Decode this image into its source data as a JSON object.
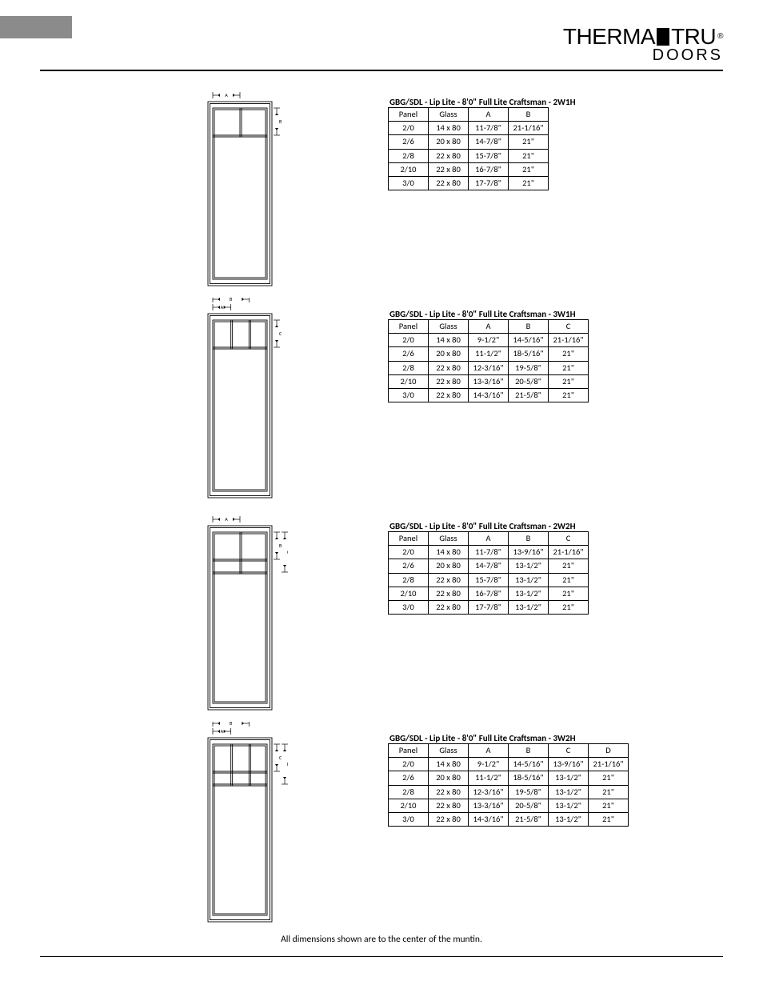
{
  "logo": {
    "part1": "THERMA",
    "part2": "TRU",
    "sub": "DOORS"
  },
  "footnote": "All dimensions shown are to the center of the muntin.",
  "diag_style": {
    "stroke": "#000000",
    "stroke_width": 0.9,
    "fill": "#ffffff",
    "label_font": "6"
  },
  "sections": [
    {
      "id": "s1",
      "title": "GBG/SDL - Lip Lite - 8'0\" Full Lite Craftsman - 2W1H",
      "diagram": {
        "cols": 2,
        "rows": 1,
        "labels": [
          "A",
          "B"
        ]
      },
      "columns": [
        "Panel",
        "Glass",
        "A",
        "B"
      ],
      "rows": [
        [
          "2/0",
          "14 x 80",
          "11-7/8\"",
          "21-1/16\""
        ],
        [
          "2/6",
          "20 x 80",
          "14-7/8\"",
          "21\""
        ],
        [
          "2/8",
          "22 x 80",
          "15-7/8\"",
          "21\""
        ],
        [
          "2/10",
          "22 x 80",
          "16-7/8\"",
          "21\""
        ],
        [
          "3/0",
          "22 x 80",
          "17-7/8\"",
          "21\""
        ]
      ]
    },
    {
      "id": "s2",
      "title": "GBG/SDL - Lip Lite - 8'0\" Full Lite Craftsman - 3W1H",
      "diagram": {
        "cols": 3,
        "rows": 1,
        "labels": [
          "A",
          "B",
          "C"
        ]
      },
      "columns": [
        "Panel",
        "Glass",
        "A",
        "B",
        "C"
      ],
      "rows": [
        [
          "2/0",
          "14 x 80",
          "9-1/2\"",
          "14-5/16\"",
          "21-1/16\""
        ],
        [
          "2/6",
          "20 x 80",
          "11-1/2\"",
          "18-5/16\"",
          "21\""
        ],
        [
          "2/8",
          "22 x 80",
          "12-3/16\"",
          "19-5/8\"",
          "21\""
        ],
        [
          "2/10",
          "22 x 80",
          "13-3/16\"",
          "20-5/8\"",
          "21\""
        ],
        [
          "3/0",
          "22 x 80",
          "14-3/16\"",
          "21-5/8\"",
          "21\""
        ]
      ]
    },
    {
      "id": "s3",
      "title": "GBG/SDL - Lip Lite - 8'0\" Full Lite Craftsman - 2W2H",
      "diagram": {
        "cols": 2,
        "rows": 2,
        "labels": [
          "A",
          "B",
          "C"
        ]
      },
      "columns": [
        "Panel",
        "Glass",
        "A",
        "B",
        "C"
      ],
      "rows": [
        [
          "2/0",
          "14 x 80",
          "11-7/8\"",
          "13-9/16\"",
          "21-1/16\""
        ],
        [
          "2/6",
          "20 x 80",
          "14-7/8\"",
          "13-1/2\"",
          "21\""
        ],
        [
          "2/8",
          "22 x 80",
          "15-7/8\"",
          "13-1/2\"",
          "21\""
        ],
        [
          "2/10",
          "22 x 80",
          "16-7/8\"",
          "13-1/2\"",
          "21\""
        ],
        [
          "3/0",
          "22 x 80",
          "17-7/8\"",
          "13-1/2\"",
          "21\""
        ]
      ]
    },
    {
      "id": "s4",
      "title": "GBG/SDL - Lip Lite - 8'0\" Full Lite Craftsman - 3W2H",
      "diagram": {
        "cols": 3,
        "rows": 2,
        "labels": [
          "A",
          "B",
          "C",
          "D"
        ]
      },
      "columns": [
        "Panel",
        "Glass",
        "A",
        "B",
        "C",
        "D"
      ],
      "rows": [
        [
          "2/0",
          "14 x 80",
          "9-1/2\"",
          "14-5/16\"",
          "13-9/16\"",
          "21-1/16\""
        ],
        [
          "2/6",
          "20 x 80",
          "11-1/2\"",
          "18-5/16\"",
          "13-1/2\"",
          "21\""
        ],
        [
          "2/8",
          "22 x 80",
          "12-3/16\"",
          "19-5/8\"",
          "13-1/2\"",
          "21\""
        ],
        [
          "2/10",
          "22 x 80",
          "13-3/16\"",
          "20-5/8\"",
          "13-1/2\"",
          "21\""
        ],
        [
          "3/0",
          "22 x 80",
          "14-3/16\"",
          "21-5/8\"",
          "13-1/2\"",
          "21\""
        ]
      ]
    }
  ]
}
